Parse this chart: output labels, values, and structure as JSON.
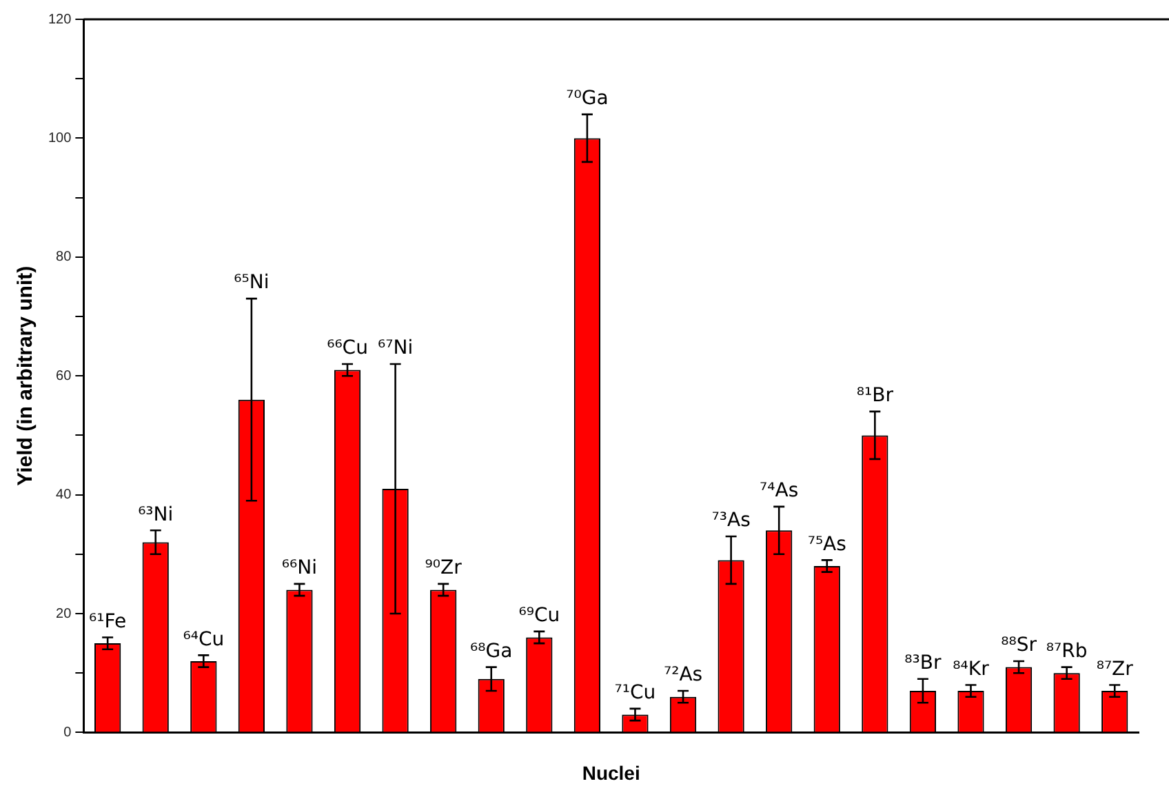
{
  "chart_data": {
    "type": "bar",
    "xlabel": "Nuclei",
    "ylabel": "Yield (in arbitrary unit)",
    "categories": [
      "⁶¹Fe",
      "⁶³Ni",
      "⁶⁴Cu",
      "⁶⁵Ni",
      "⁶⁶Ni",
      "⁶⁶Cu",
      "⁶⁷Ni",
      "⁹⁰Zr",
      "⁶⁸Ga",
      "⁶⁹Cu",
      "⁷⁰Ga",
      "⁷¹Cu",
      "⁷²As",
      "⁷³As",
      "⁷⁴As",
      "⁷⁵As",
      "⁸¹Br",
      "⁸³Br",
      "⁸⁴Kr",
      "⁸⁸Sr",
      "⁸⁷Rb",
      "⁸⁷Zr"
    ],
    "values": [
      15,
      32,
      12,
      56,
      24,
      61,
      41,
      24,
      9,
      16,
      100,
      3,
      6,
      29,
      34,
      28,
      50,
      7,
      7,
      11,
      10,
      7
    ],
    "errors": [
      1,
      2,
      1,
      17,
      1,
      1,
      21,
      1,
      2,
      1,
      4,
      1,
      1,
      4,
      4,
      1,
      4,
      2,
      1,
      1,
      1,
      1
    ],
    "color": "#ff0000",
    "ylim": [
      0,
      120
    ],
    "yticks": [
      0,
      {
        "value": 10,
        "label": null
      },
      20,
      {
        "value": 30,
        "label": null
      },
      40,
      {
        "value": 50,
        "label": null
      },
      60,
      {
        "value": 70,
        "label": null
      },
      80,
      {
        "value": 90,
        "label": null
      },
      100,
      {
        "value": 110,
        "label": null
      },
      120
    ],
    "grid": false,
    "legend": false
  }
}
